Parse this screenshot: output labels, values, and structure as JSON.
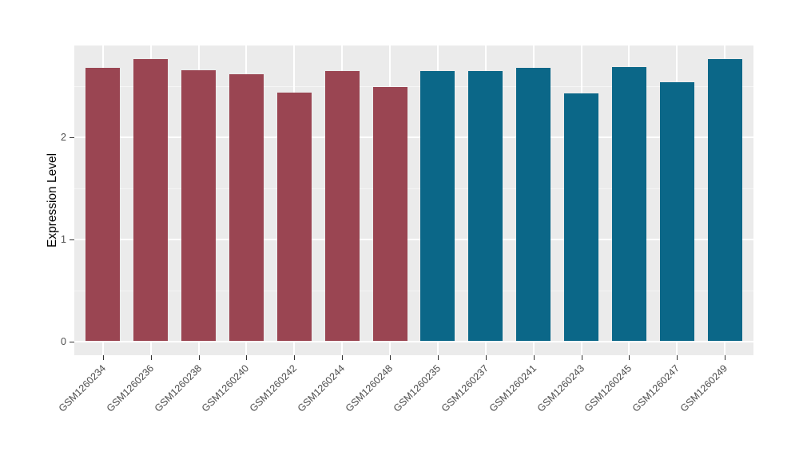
{
  "chart_data": {
    "type": "bar",
    "title": "",
    "xlabel": "",
    "ylabel": "Expression Level",
    "categories": [
      "GSM1260234",
      "GSM1260236",
      "GSM1260238",
      "GSM1260240",
      "GSM1260242",
      "GSM1260244",
      "GSM1260248",
      "GSM1260235",
      "GSM1260237",
      "GSM1260241",
      "GSM1260243",
      "GSM1260245",
      "GSM1260247",
      "GSM1260249"
    ],
    "values": [
      2.68,
      2.77,
      2.66,
      2.62,
      2.44,
      2.65,
      2.49,
      2.65,
      2.65,
      2.68,
      2.43,
      2.69,
      2.54,
      2.77
    ],
    "bar_colors": [
      "#9A4552",
      "#9A4552",
      "#9A4552",
      "#9A4552",
      "#9A4552",
      "#9A4552",
      "#9A4552",
      "#0B6788",
      "#0B6788",
      "#0B6788",
      "#0B6788",
      "#0B6788",
      "#0B6788",
      "#0B6788"
    ],
    "yticks": [
      0,
      1,
      2
    ],
    "ytick_labels": [
      "0",
      "1",
      "2"
    ],
    "y_minor_ticks": [
      0.5,
      1.5,
      2.5
    ],
    "ylim": [
      -0.14,
      2.9
    ],
    "grid": true,
    "legend": "none"
  },
  "colors": {
    "group_a_bar": "#9A4552",
    "group_b_bar": "#0B6788",
    "panel_background": "#EBEBEB",
    "grid_major": "#FFFFFF",
    "grid_minor": "#F5F5F5",
    "tick_mark": "#333333",
    "tick_text": "#4D4D4D"
  }
}
